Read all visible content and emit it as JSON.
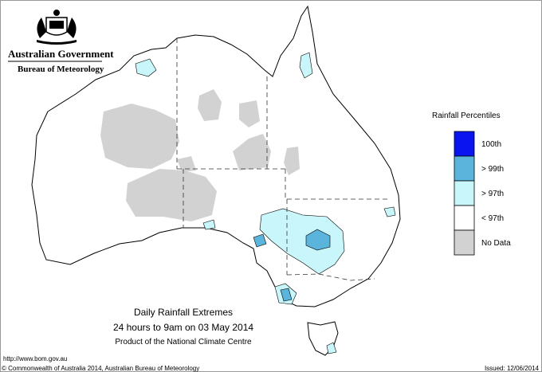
{
  "header": {
    "government": "Australian Government",
    "bureau": "Bureau of Meteorology"
  },
  "legend": {
    "title": "Rainfall Percentiles",
    "items": [
      {
        "label": "100th",
        "color": "#0a14f0"
      },
      {
        "label": "> 99th",
        "color": "#5ab4dc"
      },
      {
        "label": "> 97th",
        "color": "#c8f6fa"
      },
      {
        "label": "< 97th",
        "color": "#ffffff"
      },
      {
        "label": "No Data",
        "color": "#d2d2d2"
      }
    ]
  },
  "caption": {
    "title": "Daily Rainfall Extremes",
    "subtitle": "24 hours to 9am on 03 May 2014",
    "product": "Product of the National Climate Centre"
  },
  "footer": {
    "url": "http://www.bom.gov.au",
    "copyright": "© Commonwealth of Australia 2014, Australian Bureau of Meteorology",
    "issued": "Issued: 12/06/2014"
  }
}
